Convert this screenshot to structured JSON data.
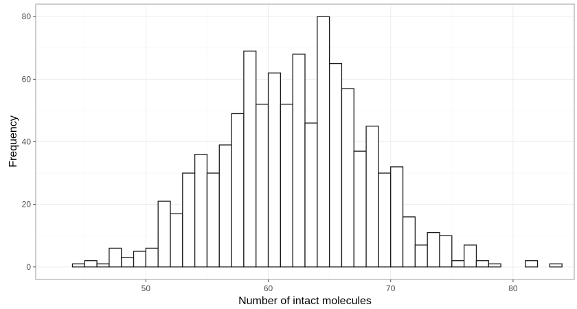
{
  "chart_data": {
    "type": "bar",
    "xlabel": "Number of intact molecules",
    "ylabel": "Frequency",
    "xlim": [
      41,
      85
    ],
    "ylim": [
      -4,
      84
    ],
    "x_ticks": [
      50,
      60,
      70,
      80
    ],
    "y_ticks": [
      0,
      20,
      40,
      60,
      80
    ],
    "x_tick_labels": [
      "50",
      "60",
      "70",
      "80"
    ],
    "y_tick_labels": [
      "0",
      "20",
      "40",
      "60",
      "80"
    ],
    "grid": true,
    "bin_width": 1,
    "bins": [
      43,
      44,
      45,
      46,
      47,
      48,
      49,
      50,
      51,
      52,
      53,
      54,
      55,
      56,
      57,
      58,
      59,
      60,
      61,
      62,
      63,
      64,
      65,
      66,
      67,
      68,
      69,
      70,
      71,
      72,
      73,
      74,
      75,
      76,
      77,
      78,
      79,
      80,
      81,
      82,
      83
    ],
    "values": [
      0,
      1,
      2,
      1,
      6,
      3,
      5,
      6,
      21,
      17,
      30,
      36,
      30,
      39,
      49,
      69,
      52,
      62,
      52,
      68,
      46,
      80,
      65,
      57,
      37,
      45,
      30,
      32,
      16,
      7,
      11,
      10,
      2,
      7,
      2,
      1,
      0,
      0,
      2,
      0,
      1
    ]
  }
}
